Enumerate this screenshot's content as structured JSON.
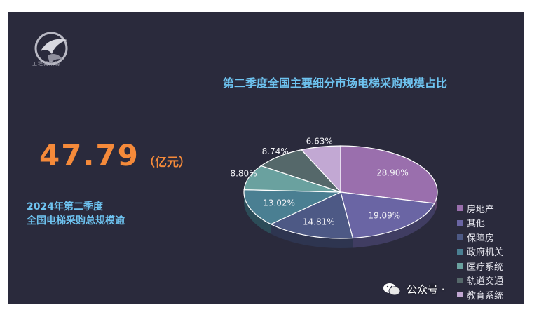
{
  "logo": {
    "caption": "工程易采购",
    "icon": "bird-logo-icon"
  },
  "chart_title": "第二季度全国主要细分市场电梯采购规模占比",
  "headline": {
    "value": "47.79",
    "unit": "（亿元）"
  },
  "subtitle": {
    "line1": "2024年第二季度",
    "line2": "全国电梯采购总规模逾"
  },
  "chart_data": {
    "type": "pie",
    "title": "第二季度全国主要细分市场电梯采购规模占比",
    "style": "3d",
    "legend_position": "right",
    "slices": [
      {
        "name": "房地产",
        "value": 28.9,
        "label": "28.90%",
        "color": "#9a6fad"
      },
      {
        "name": "其他",
        "value": 19.09,
        "label": "19.09%",
        "color": "#6a65a4"
      },
      {
        "name": "保障房",
        "value": 14.81,
        "label": "14.81%",
        "color": "#4d5985"
      },
      {
        "name": "政府机关",
        "value": 13.02,
        "label": "13.02%",
        "color": "#4a7f92"
      },
      {
        "name": "医疗系统",
        "value": 8.8,
        "label": "8.80%",
        "color": "#6aa19f"
      },
      {
        "name": "轨道交通",
        "value": 8.74,
        "label": "8.74%",
        "color": "#55686a"
      },
      {
        "name": "教育系统",
        "value": 6.63,
        "label": "6.63%",
        "color": "#c2a8d3"
      }
    ]
  },
  "watermark": {
    "text": "公众号 ·",
    "icon": "wechat-icon"
  }
}
